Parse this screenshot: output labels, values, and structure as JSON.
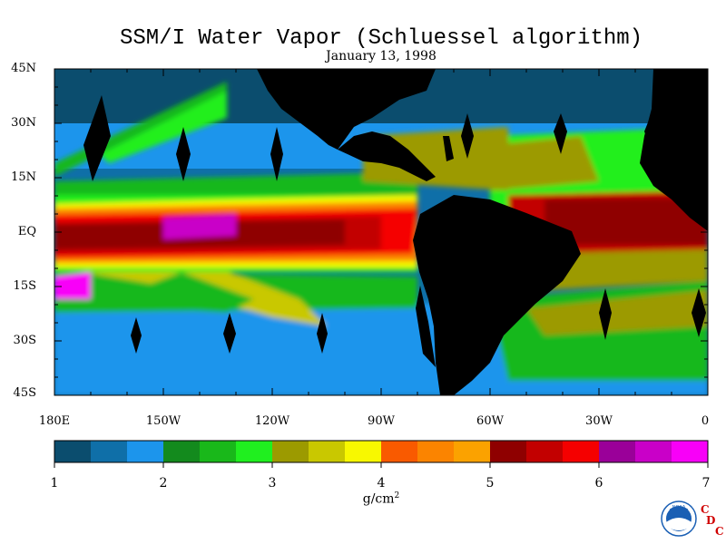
{
  "header": {
    "title": "SSM/I Water Vapor (Schluessel algorithm)",
    "date": "January 13, 1998"
  },
  "map": {
    "lat_labels": [
      "45N",
      "30N",
      "15N",
      "EQ",
      "15S",
      "30S",
      "45S"
    ],
    "lat_values": [
      45,
      30,
      15,
      0,
      -15,
      -30,
      -45
    ],
    "lon_labels": [
      "180E",
      "150W",
      "120W",
      "90W",
      "60W",
      "30W",
      "0"
    ],
    "lon_values": [
      -180,
      -150,
      -120,
      -90,
      -60,
      -30,
      0
    ],
    "extent": {
      "lon_min": -180,
      "lon_max": 0,
      "lat_min": -45,
      "lat_max": 45
    },
    "land_color": "#000000"
  },
  "colorbar": {
    "tick_labels": [
      "1",
      "2",
      "3",
      "4",
      "5",
      "6",
      "7"
    ],
    "min": 1,
    "max": 7,
    "unit_base": "g/cm",
    "unit_sup": "2",
    "colors": [
      "#0b4d6e",
      "#0f6fa8",
      "#1c95ec",
      "#138a1d",
      "#19b81a",
      "#20ef1f",
      "#9c9a00",
      "#c9c800",
      "#f8f800",
      "#f95a00",
      "#fb8400",
      "#fba200",
      "#8f0000",
      "#c20000",
      "#f50000",
      "#9a0099",
      "#c900c8",
      "#f800f8"
    ]
  },
  "credits": {
    "logo_text": "NOAA",
    "letters": [
      "C",
      "D",
      "C"
    ]
  }
}
